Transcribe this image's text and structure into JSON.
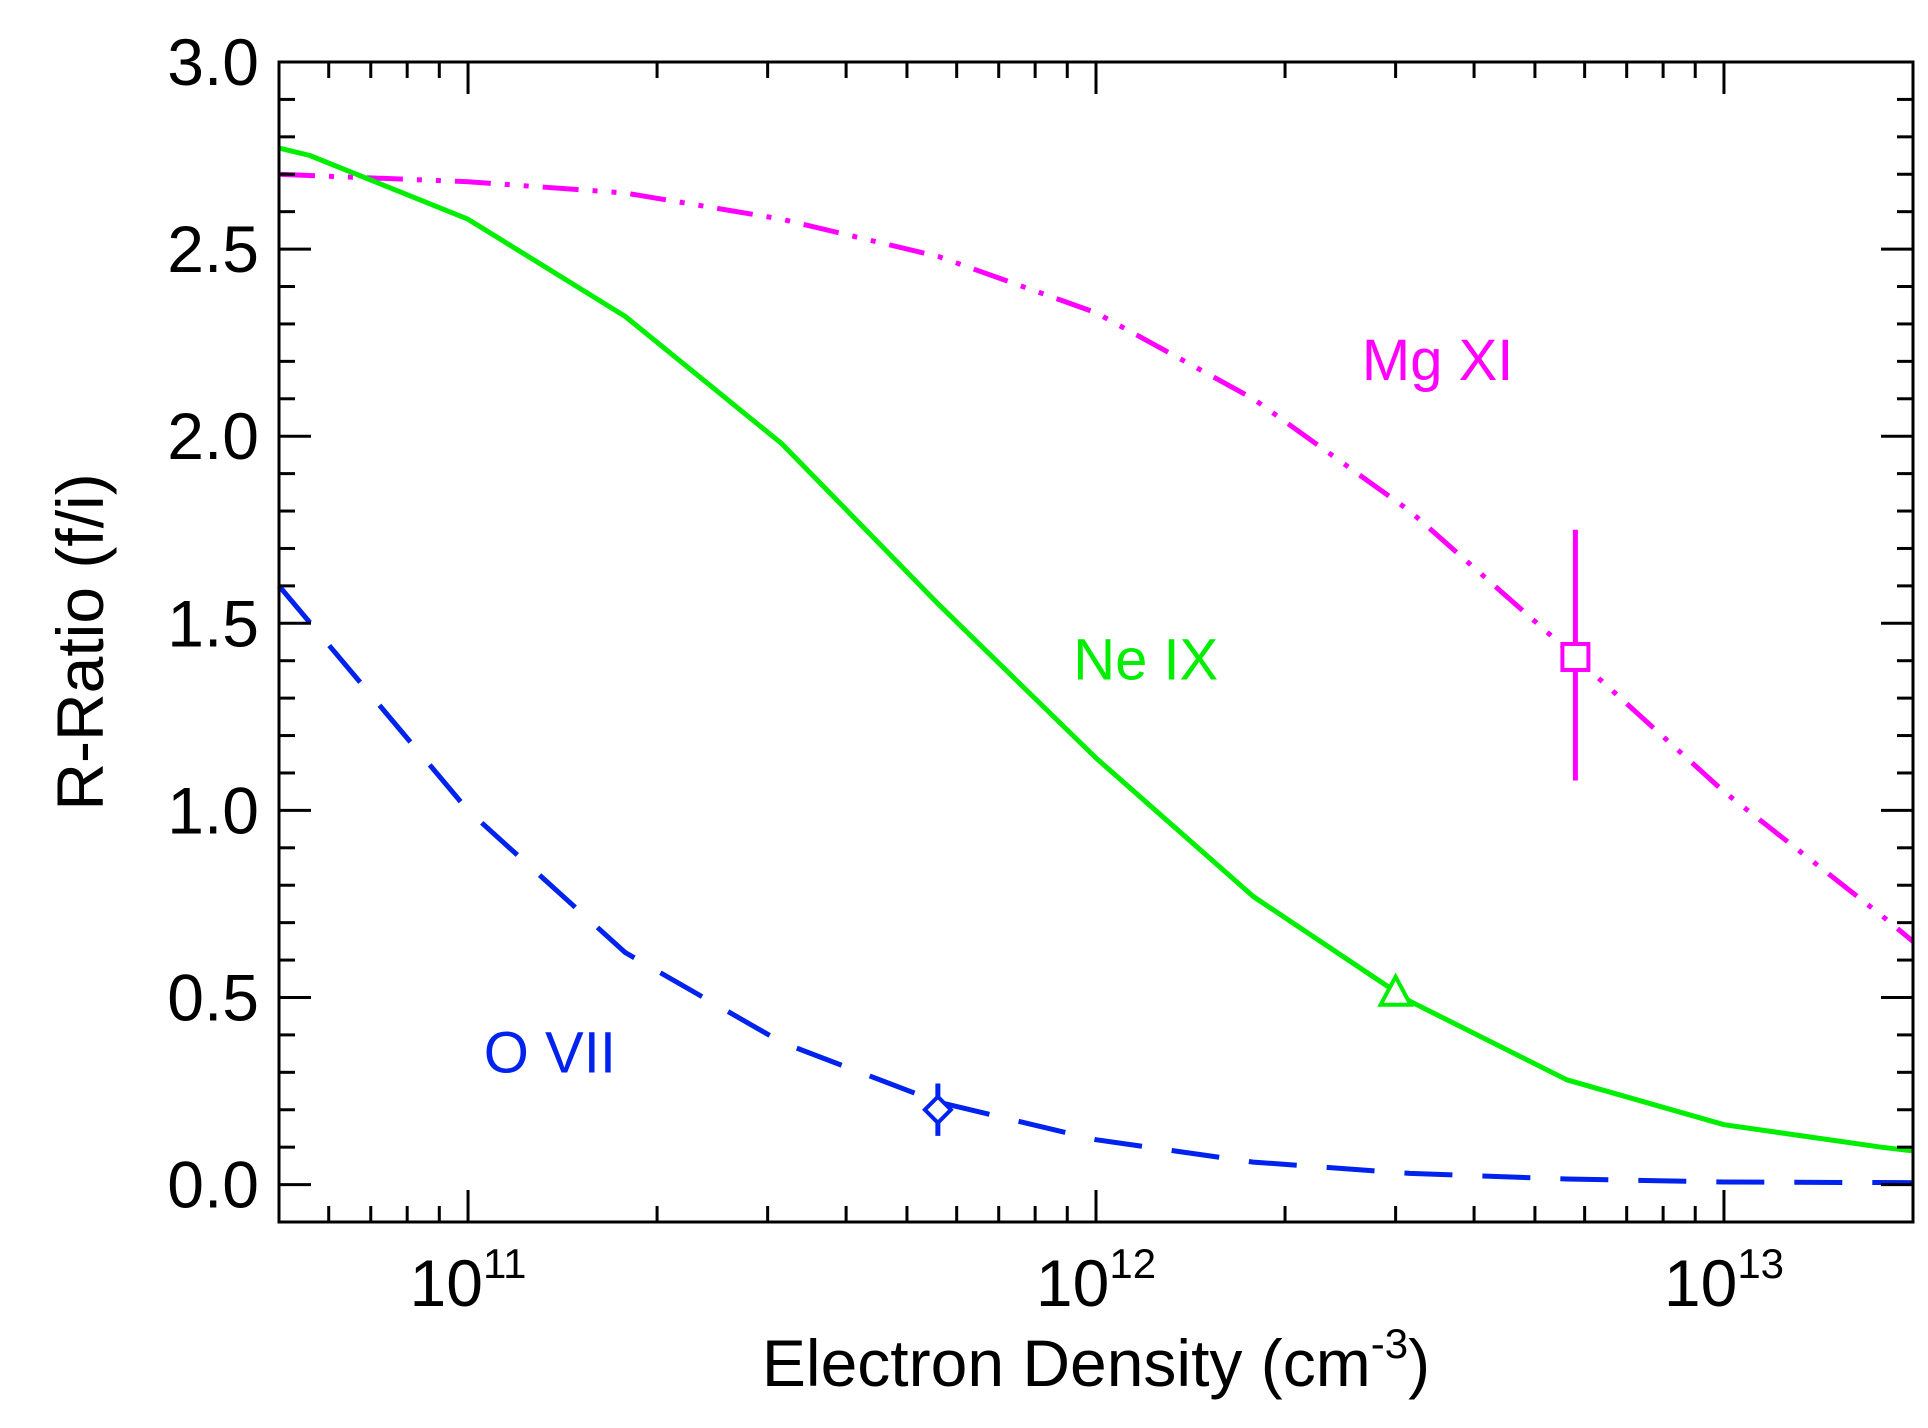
{
  "chart_data": {
    "type": "line",
    "title": "",
    "xlabel": "Electron Density (cm",
    "xlabel_superscript": "-3",
    "xlabel_suffix": ")",
    "ylabel": "R-Ratio (f/i)",
    "xscale": "log",
    "xlim": [
      50000000000.0,
      20000000000000.0
    ],
    "ylim": [
      -0.1,
      3.0
    ],
    "y_ticks": [
      0.0,
      0.5,
      1.0,
      1.5,
      2.0,
      2.5,
      3.0
    ],
    "y_tick_labels": [
      "0.0",
      "0.5",
      "1.0",
      "1.5",
      "2.0",
      "2.5",
      "3.0"
    ],
    "x_ticks": [
      100000000000.0,
      1000000000000.0,
      10000000000000.0
    ],
    "x_tick_labels": [
      {
        "base": "10",
        "exp": "11"
      },
      {
        "base": "10",
        "exp": "12"
      },
      {
        "base": "10",
        "exp": "13"
      }
    ],
    "grid": false,
    "series": [
      {
        "name": "Mg XI",
        "color": "#ff00ff",
        "linestyle": "dash-dot-dot",
        "x": [
          50000000000.0,
          100000000000.0,
          178000000000.0,
          316000000000.0,
          562000000000.0,
          1000000000000.0,
          1780000000000.0,
          3160000000000.0,
          5620000000000.0,
          10000000000000.0,
          17800000000000.0,
          20000000000000.0
        ],
        "y": [
          2.7,
          2.68,
          2.65,
          2.58,
          2.48,
          2.33,
          2.1,
          1.8,
          1.43,
          1.05,
          0.72,
          0.65
        ],
        "marker": {
          "shape": "square",
          "x": 5800000000000.0,
          "y": 1.41,
          "yerr_low": 1.08,
          "yerr_high": 1.75
        }
      },
      {
        "name": "Ne IX",
        "color": "#00ee00",
        "linestyle": "solid",
        "x": [
          50000000000.0,
          56000000000.0,
          100000000000.0,
          178000000000.0,
          316000000000.0,
          562000000000.0,
          1000000000000.0,
          1780000000000.0,
          3160000000000.0,
          5620000000000.0,
          10000000000000.0,
          17800000000000.0,
          20000000000000.0
        ],
        "y": [
          2.77,
          2.75,
          2.58,
          2.32,
          1.98,
          1.55,
          1.14,
          0.77,
          0.49,
          0.28,
          0.16,
          0.1,
          0.09
        ],
        "marker": {
          "shape": "triangle",
          "x": 3000000000000.0,
          "y": 0.51
        }
      },
      {
        "name": "O VII",
        "color": "#0022ee",
        "linestyle": "dashed",
        "x": [
          50000000000.0,
          100000000000.0,
          178000000000.0,
          316000000000.0,
          562000000000.0,
          1000000000000.0,
          1780000000000.0,
          3160000000000.0,
          5620000000000.0,
          10000000000000.0,
          20000000000000.0
        ],
        "y": [
          1.6,
          1.0,
          0.62,
          0.38,
          0.22,
          0.12,
          0.06,
          0.03,
          0.015,
          0.007,
          0.005
        ],
        "marker": {
          "shape": "diamond",
          "x": 560000000000.0,
          "y": 0.2,
          "yerr_low": 0.13,
          "yerr_high": 0.27
        }
      }
    ],
    "annotations": [
      {
        "text": "Mg XI",
        "x": 3500000000000.0,
        "y": 2.15,
        "color": "#ff00ff"
      },
      {
        "text": "Ne IX",
        "x": 1200000000000.0,
        "y": 1.35,
        "color": "#00ee00"
      },
      {
        "text": "O VII",
        "x": 135000000000.0,
        "y": 0.3,
        "color": "#0022ee"
      }
    ]
  }
}
